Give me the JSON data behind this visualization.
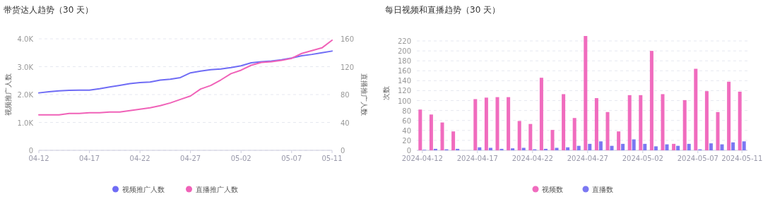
{
  "chart_data": [
    {
      "type": "line",
      "title": "带货达人趋势（30 天）",
      "ylabel": "视频推广人数",
      "y2label": "直播推广人数",
      "legend": "bottom",
      "grid": "y",
      "categories": [
        "04-12",
        null,
        null,
        null,
        null,
        "04-17",
        null,
        null,
        null,
        null,
        "04-22",
        null,
        null,
        null,
        null,
        "04-27",
        null,
        null,
        null,
        null,
        "05-02",
        null,
        null,
        null,
        null,
        "05-07",
        null,
        null,
        null,
        "05-11"
      ],
      "ylim": [
        0,
        4000
      ],
      "yticks": [
        0,
        {
          "value": 1000,
          "label": "1.0K"
        },
        {
          "value": 2000,
          "label": "2.0K"
        },
        {
          "value": 3000,
          "label": "3.0K"
        },
        {
          "value": 4000,
          "label": "4.0K"
        }
      ],
      "y2lim": [
        0,
        160
      ],
      "y2ticks": [
        0,
        40,
        80,
        120,
        160
      ],
      "series": [
        {
          "name": "视频推广人数",
          "color": "#6f6cf5",
          "values": [
            2060,
            2100,
            2130,
            2150,
            2160,
            2160,
            2210,
            2270,
            2330,
            2390,
            2430,
            2450,
            2520,
            2550,
            2610,
            2780,
            2840,
            2890,
            2920,
            2970,
            3030,
            3140,
            3180,
            3200,
            3250,
            3310,
            3390,
            3440,
            3500,
            3560
          ]
        },
        {
          "name": "直播推广人数",
          "color": "#f062b8",
          "axis": "y2",
          "values": [
            51,
            51,
            51,
            53,
            53,
            54,
            54,
            55,
            55,
            57,
            59,
            61,
            64,
            68,
            73,
            78,
            88,
            93,
            101,
            110,
            115,
            122,
            126,
            127,
            129,
            132,
            139,
            143,
            147,
            158
          ]
        }
      ]
    },
    {
      "type": "bar",
      "title": "每日视频和直播趋势（30 天）",
      "ylabel": "次数",
      "legend": "bottom",
      "grid": "y",
      "categories": [
        "2024-04-12",
        null,
        null,
        null,
        null,
        "2024-04-17",
        null,
        null,
        null,
        null,
        "2024-04-22",
        null,
        null,
        null,
        null,
        "2024-04-27",
        null,
        null,
        null,
        null,
        "2024-05-02",
        null,
        null,
        null,
        null,
        "2024-05-07",
        null,
        null,
        null,
        "2024-05-11"
      ],
      "ylim": [
        0,
        230
      ],
      "yticks": [
        0,
        20,
        40,
        60,
        80,
        100,
        120,
        140,
        160,
        180,
        200,
        220
      ],
      "series": [
        {
          "name": "视频数",
          "color": "#f06cbe",
          "values": [
            82,
            72,
            56,
            38,
            null,
            103,
            106,
            107,
            107,
            59,
            53,
            146,
            41,
            113,
            65,
            230,
            105,
            77,
            38,
            111,
            111,
            200,
            113,
            13,
            101,
            164,
            119,
            77,
            138,
            118
          ]
        },
        {
          "name": "直播数",
          "color": "#7b78f2",
          "values": [
            1,
            3,
            2,
            3,
            null,
            6,
            5,
            3,
            4,
            5,
            2,
            3,
            5,
            6,
            9,
            13,
            18,
            9,
            13,
            22,
            13,
            8,
            12,
            9,
            13,
            2,
            14,
            12,
            16,
            18
          ]
        }
      ]
    }
  ]
}
